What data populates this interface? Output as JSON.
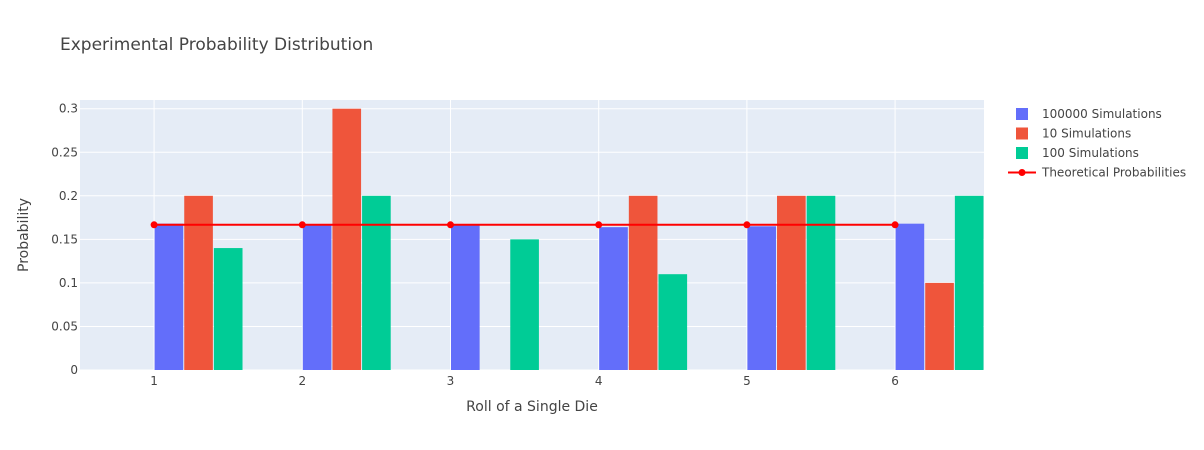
{
  "chart_data": {
    "type": "bar",
    "title": "Experimental Probability Distribution",
    "xlabel": "Roll of a Single Die",
    "ylabel": "Probability",
    "categories": [
      1,
      2,
      3,
      4,
      5,
      6
    ],
    "xlim": [
      0.5,
      6.6
    ],
    "ylim": [
      0,
      0.31
    ],
    "yticks": [
      0,
      0.05,
      0.1,
      0.15,
      0.2,
      0.25,
      0.3
    ],
    "yticklabels": [
      "0",
      "0.05",
      "0.1",
      "0.15",
      "0.2",
      "0.25",
      "0.3"
    ],
    "grid": true,
    "legend_position": "top-right",
    "series": [
      {
        "name": "100000 Simulations",
        "type": "bar",
        "color": "#636efa",
        "values": [
          0.168,
          0.167,
          0.167,
          0.164,
          0.165,
          0.168
        ]
      },
      {
        "name": "10 Simulations",
        "type": "bar",
        "color": "#ef553b",
        "values": [
          0.2,
          0.3,
          0.0,
          0.2,
          0.2,
          0.1
        ]
      },
      {
        "name": "100 Simulations",
        "type": "bar",
        "color": "#00cc96",
        "values": [
          0.14,
          0.2,
          0.15,
          0.11,
          0.2,
          0.2
        ]
      },
      {
        "name": "Theoretical Probabilities",
        "type": "line",
        "color": "#ff0000",
        "values": [
          0.1667,
          0.1667,
          0.1667,
          0.1667,
          0.1667,
          0.1667
        ]
      }
    ]
  }
}
